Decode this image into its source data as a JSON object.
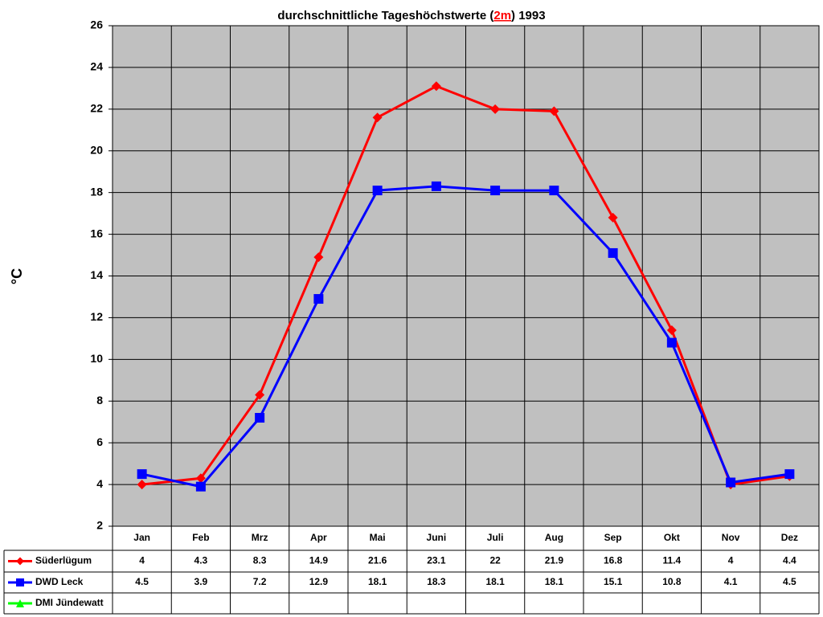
{
  "chart_data": {
    "type": "line",
    "title": [
      "durchschnittliche Tageshöchstwerte (",
      "2m",
      ") 1993"
    ],
    "y_label": "°C",
    "categories": [
      "Jan",
      "Feb",
      "Mrz",
      "Apr",
      "Mai",
      "Juni",
      "Juli",
      "Aug",
      "Sep",
      "Okt",
      "Nov",
      "Dez"
    ],
    "series": [
      {
        "name": "Süderlügum",
        "color": "#ff0000",
        "marker": "diamond",
        "values": [
          4,
          4.3,
          8.3,
          14.9,
          21.6,
          23.1,
          22,
          21.9,
          16.8,
          11.4,
          4,
          4.4
        ]
      },
      {
        "name": "DWD Leck",
        "color": "#0000ff",
        "marker": "square",
        "values": [
          4.5,
          3.9,
          7.2,
          12.9,
          18.1,
          18.3,
          18.1,
          18.1,
          15.1,
          10.8,
          4.1,
          4.5
        ]
      },
      {
        "name": "DMI Jündewatt",
        "color": "#00ff00",
        "marker": "triangle",
        "values": [
          null,
          null,
          null,
          null,
          null,
          null,
          null,
          null,
          null,
          null,
          null,
          null
        ]
      }
    ],
    "ylim": [
      2,
      26
    ],
    "yticks": [
      2,
      4,
      6,
      8,
      10,
      12,
      14,
      16,
      18,
      20,
      22,
      24,
      26
    ],
    "grid": true
  }
}
